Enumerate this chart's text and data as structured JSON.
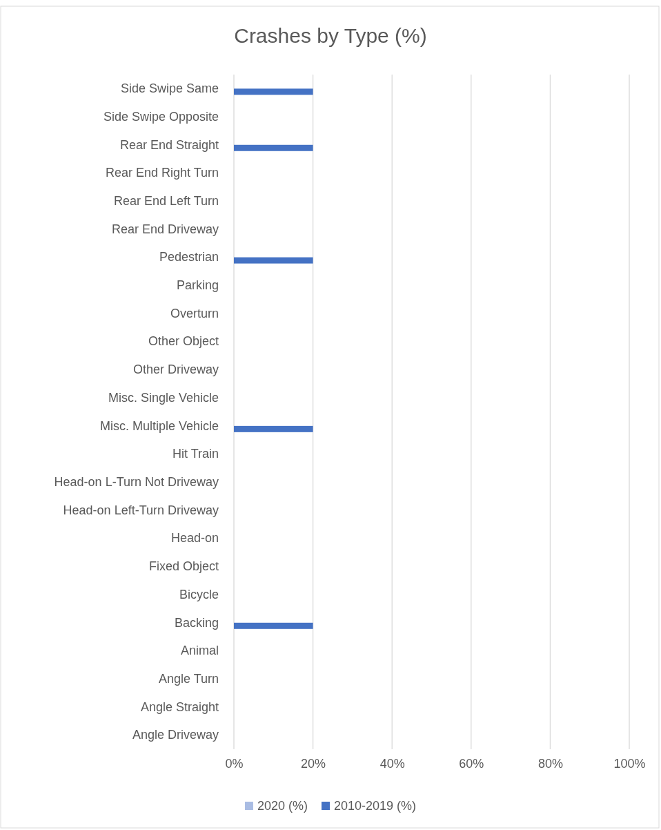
{
  "chart_data": {
    "type": "bar",
    "orientation": "horizontal",
    "title": "Crashes by Type (%)",
    "categories": [
      "Side Swipe Same",
      "Side Swipe Opposite",
      "Rear End Straight",
      "Rear End Right Turn",
      "Rear End Left Turn",
      "Rear End Driveway",
      "Pedestrian",
      "Parking",
      "Overturn",
      "Other Object",
      "Other Driveway",
      "Misc. Single Vehicle",
      "Misc. Multiple Vehicle",
      "Hit Train",
      "Head-on L-Turn Not Driveway",
      "Head-on Left-Turn Driveway",
      "Head-on",
      "Fixed Object",
      "Bicycle",
      "Backing",
      "Animal",
      "Angle Turn",
      "Angle Straight",
      "Angle Driveway"
    ],
    "series": [
      {
        "name": "2020 (%)",
        "color": "#a9bce3",
        "values": [
          0,
          0,
          0,
          0,
          0,
          0,
          0,
          0,
          0,
          0,
          0,
          0,
          0,
          0,
          0,
          0,
          0,
          0,
          0,
          0,
          0,
          0,
          0,
          0
        ]
      },
      {
        "name": "2010-2019 (%)",
        "color": "#4472c4",
        "values": [
          20,
          0,
          20,
          0,
          0,
          0,
          20,
          0,
          0,
          0,
          0,
          0,
          20,
          0,
          0,
          0,
          0,
          0,
          0,
          20,
          0,
          0,
          0,
          0
        ]
      }
    ],
    "xlim": [
      0,
      100
    ],
    "xticks": [
      {
        "value": 0,
        "label": "0%"
      },
      {
        "value": 20,
        "label": "20%"
      },
      {
        "value": 40,
        "label": "40%"
      },
      {
        "value": 60,
        "label": "60%"
      },
      {
        "value": 80,
        "label": "80%"
      },
      {
        "value": 100,
        "label": "100%"
      }
    ],
    "grid": "x",
    "legend": "bottom"
  }
}
